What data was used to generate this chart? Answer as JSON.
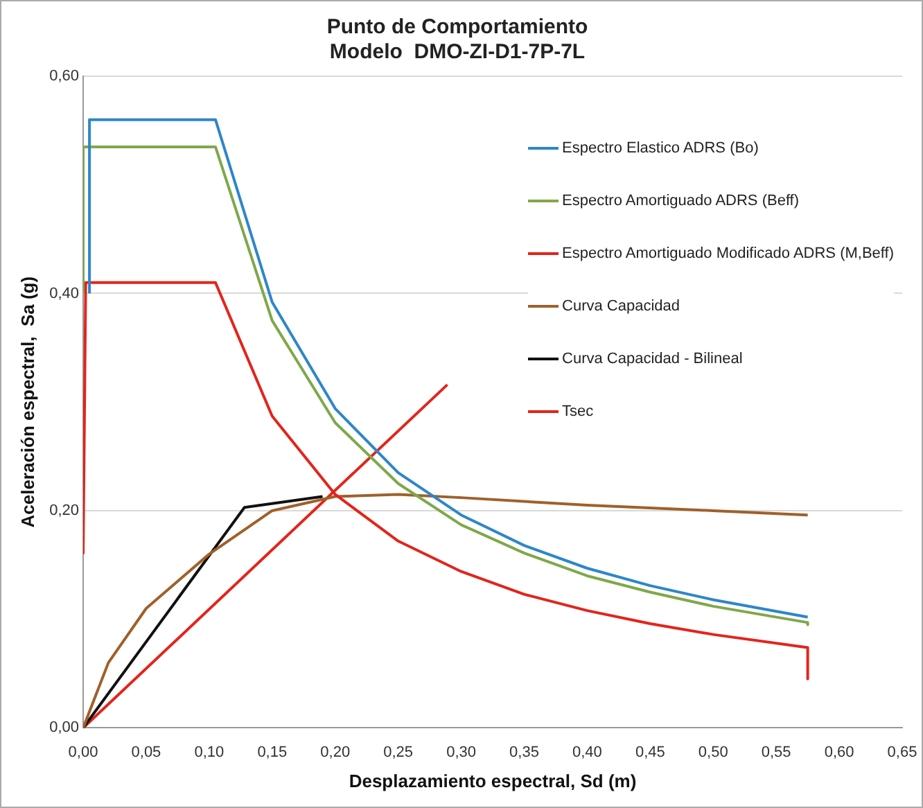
{
  "chart_data": {
    "type": "line",
    "title": "Punto de Comportamiento\nModelo  DMO-ZI-D1-7P-7L",
    "xlabel": "Desplazamiento espectral, Sd (m)",
    "ylabel": "Aceleración espectral,  Sa (g)",
    "xlim": [
      0,
      0.65
    ],
    "ylim": [
      0,
      0.6
    ],
    "xticks": [
      {
        "value": 0,
        "label": "0,00"
      },
      {
        "value": 0.05,
        "label": "0,05"
      },
      {
        "value": 0.1,
        "label": "0,10"
      },
      {
        "value": 0.15,
        "label": "0,15"
      },
      {
        "value": 0.2,
        "label": "0,20"
      },
      {
        "value": 0.25,
        "label": "0,25"
      },
      {
        "value": 0.3,
        "label": "0,30"
      },
      {
        "value": 0.35,
        "label": "0,35"
      },
      {
        "value": 0.4,
        "label": "0,40"
      },
      {
        "value": 0.45,
        "label": "0,45"
      },
      {
        "value": 0.5,
        "label": "0,50"
      },
      {
        "value": 0.55,
        "label": "0,55"
      },
      {
        "value": 0.6,
        "label": "0,60"
      },
      {
        "value": 0.65,
        "label": "0,65"
      }
    ],
    "yticks": [
      {
        "value": 0,
        "label": "0,00"
      },
      {
        "value": 0.2,
        "label": "0,20"
      },
      {
        "value": 0.4,
        "label": "0,40"
      },
      {
        "value": 0.6,
        "label": "0,60"
      }
    ],
    "grid": "y",
    "legend": "top right",
    "marker": "none",
    "line_style": "solid",
    "series": [
      {
        "name": "Espectro Elastico ADRS (Bo)",
        "color": "#2e86c8",
        "x": [
          0.005,
          0.005,
          0.105,
          0.15,
          0.2,
          0.25,
          0.3,
          0.35,
          0.4,
          0.45,
          0.5,
          0.575
        ],
        "values": [
          0.4,
          0.56,
          0.56,
          0.392,
          0.294,
          0.235,
          0.196,
          0.168,
          0.147,
          0.131,
          0.118,
          0.102
        ]
      },
      {
        "name": "Espectro Amortiguado ADRS (Beff)",
        "color": "#7fa84a",
        "x": [
          0,
          0,
          0.105,
          0.15,
          0.2,
          0.25,
          0.3,
          0.35,
          0.4,
          0.45,
          0.5,
          0.575,
          0.575
        ],
        "values": [
          0.4,
          0.535,
          0.535,
          0.375,
          0.281,
          0.225,
          0.187,
          0.161,
          0.14,
          0.125,
          0.112,
          0.097,
          0.095
        ]
      },
      {
        "name": "Espectro Amortiguado Modificado ADRS (M,Beff)",
        "color": "#e3241b",
        "x": [
          0,
          0.002,
          0.105,
          0.15,
          0.2,
          0.25,
          0.3,
          0.35,
          0.4,
          0.45,
          0.5,
          0.575,
          0.575
        ],
        "values": [
          0.16,
          0.41,
          0.41,
          0.287,
          0.215,
          0.172,
          0.144,
          0.123,
          0.108,
          0.096,
          0.086,
          0.074,
          0.045
        ]
      },
      {
        "name": "Curva Capacidad",
        "color": "#a0602a",
        "x": [
          0,
          0.02,
          0.05,
          0.1,
          0.15,
          0.2,
          0.25,
          0.3,
          0.4,
          0.5,
          0.575
        ],
        "values": [
          0,
          0.06,
          0.11,
          0.16,
          0.2,
          0.213,
          0.215,
          0.212,
          0.205,
          0.2,
          0.196
        ]
      },
      {
        "name": "Curva Capacidad - Bilineal",
        "color": "#111111",
        "x": [
          0,
          0.128,
          0.19
        ],
        "values": [
          0,
          0.203,
          0.213
        ]
      },
      {
        "name": "Tsec",
        "color": "#e3241b",
        "x": [
          0,
          0.289
        ],
        "values": [
          0,
          0.316
        ]
      }
    ]
  }
}
